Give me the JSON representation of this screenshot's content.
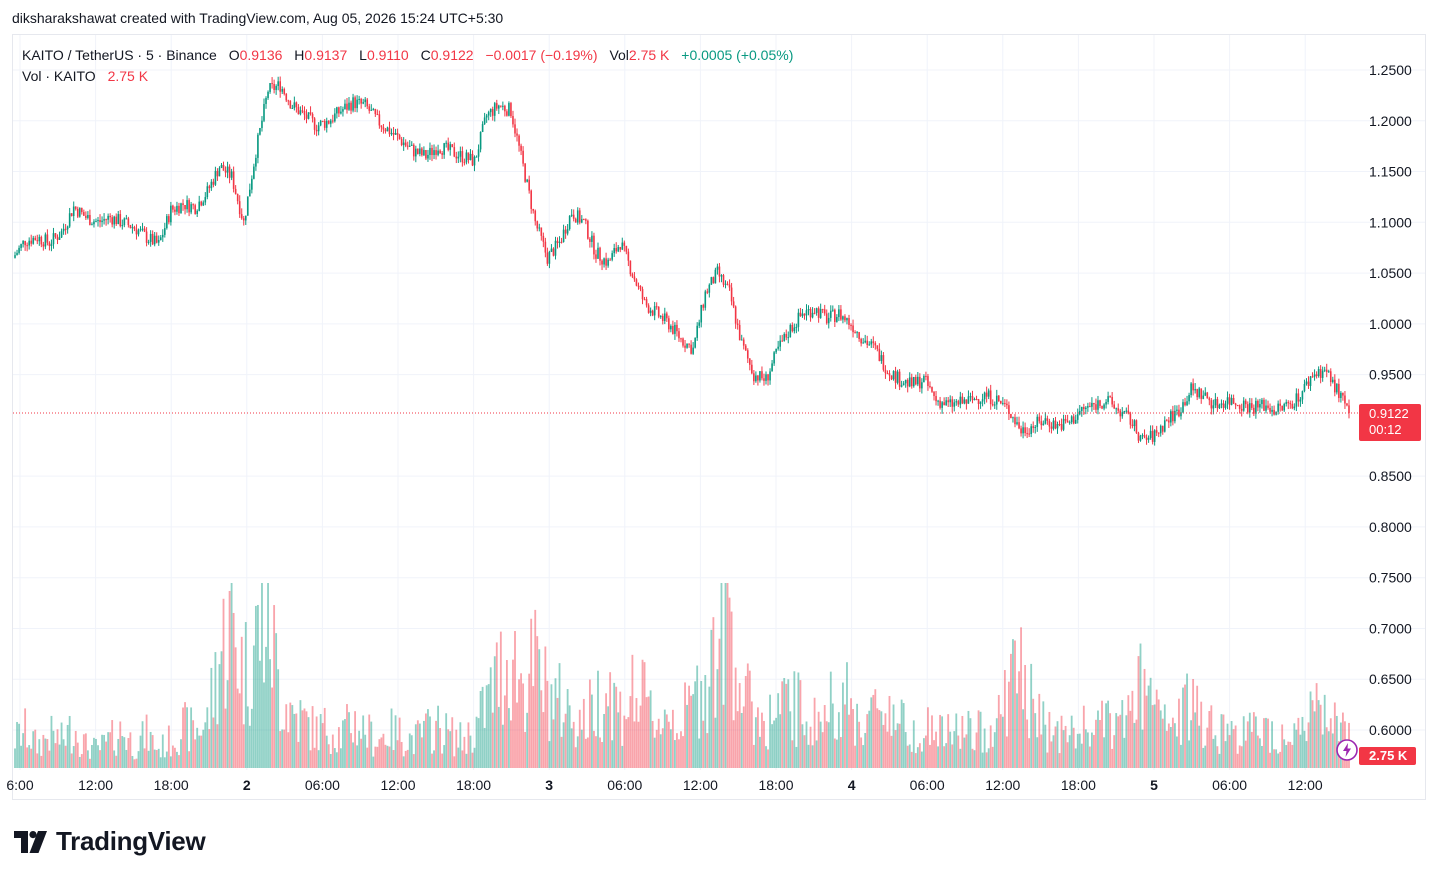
{
  "credit": "diksharakshawat created with TradingView.com, Aug 05, 2026 15:24 UTC+5:30",
  "legend": {
    "symbol": "KAITO / TetherUS · 5 · Binance",
    "open_label": "O",
    "open": "0.9136",
    "high_label": "H",
    "high": "0.9137",
    "low_label": "L",
    "low": "0.9110",
    "close_label": "C",
    "close": "0.9122",
    "change": "−0.0017 (−0.19%)",
    "vol_label": "Vol",
    "vol": "2.75 K",
    "vol_change": "+0.0005 (+0.05%)",
    "vol_row_label": "Vol · KAITO",
    "vol_row_value": "2.75 K"
  },
  "price_tag": {
    "price": "0.9122",
    "countdown": "00:12"
  },
  "volume_tag": "2.75 K",
  "logo_text": "TradingView",
  "colors": {
    "up": "#089981",
    "down": "#f23645",
    "grid": "#f0f3fa",
    "text": "#131722"
  },
  "chart_data": {
    "type": "candlestick",
    "symbol": "KAITO / TetherUS",
    "interval": "5",
    "exchange": "Binance",
    "y_axis": {
      "ticks": [
        "1.2500",
        "1.2000",
        "1.1500",
        "1.1000",
        "1.0500",
        "1.0000",
        "0.9500",
        "0.9122",
        "0.8500",
        "0.8000",
        "0.7500",
        "0.7000",
        "0.6500",
        "0.6000"
      ],
      "range": [
        0.57,
        1.27
      ],
      "position": "right"
    },
    "x_axis": {
      "ticks": [
        "6:00",
        "12:00",
        "18:00",
        "2",
        "06:00",
        "12:00",
        "18:00",
        "3",
        "06:00",
        "12:00",
        "18:00",
        "4",
        "06:00",
        "12:00",
        "18:00",
        "5",
        "06:00",
        "12:00"
      ],
      "bold_ticks": [
        "2",
        "3",
        "4",
        "5"
      ]
    },
    "grid": true,
    "last_price": 0.9122,
    "price_path_hourly": [
      1.065,
      1.082,
      1.085,
      1.08,
      1.09,
      1.115,
      1.105,
      1.1,
      1.105,
      1.1,
      1.095,
      1.085,
      1.078,
      1.112,
      1.118,
      1.115,
      1.13,
      1.155,
      1.145,
      1.1,
      1.17,
      1.23,
      1.235,
      1.215,
      1.205,
      1.195,
      1.2,
      1.21,
      1.218,
      1.215,
      1.2,
      1.19,
      1.18,
      1.17,
      1.165,
      1.175,
      1.17,
      1.165,
      1.16,
      1.205,
      1.215,
      1.21,
      1.155,
      1.1,
      1.065,
      1.08,
      1.11,
      1.1,
      1.07,
      1.06,
      1.08,
      1.05,
      1.02,
      1.01,
      1.0,
      0.985,
      0.975,
      1.03,
      1.05,
      1.03,
      0.98,
      0.95,
      0.945,
      0.975,
      0.995,
      1.01,
      1.015,
      1.005,
      1.01,
      1.0,
      0.985,
      0.975,
      0.955,
      0.945,
      0.94,
      0.945,
      0.925,
      0.92,
      0.922,
      0.925,
      0.93,
      0.925,
      0.915,
      0.895,
      0.9,
      0.905,
      0.9,
      0.903,
      0.915,
      0.92,
      0.925,
      0.915,
      0.905,
      0.885,
      0.89,
      0.905,
      0.915,
      0.935,
      0.93,
      0.92,
      0.925,
      0.922,
      0.918,
      0.92,
      0.915,
      0.92,
      0.93,
      0.95,
      0.955,
      0.935,
      0.9122
    ],
    "volume": {
      "label": "Vol · KAITO",
      "last": "2.75 K",
      "relative_levels_hourly": [
        0.15,
        0.2,
        0.12,
        0.18,
        0.15,
        0.22,
        0.12,
        0.1,
        0.15,
        0.2,
        0.12,
        0.18,
        0.1,
        0.15,
        0.22,
        0.2,
        0.25,
        0.6,
        0.8,
        0.5,
        0.7,
        0.85,
        0.4,
        0.3,
        0.25,
        0.2,
        0.22,
        0.18,
        0.25,
        0.2,
        0.15,
        0.2,
        0.18,
        0.15,
        0.2,
        0.22,
        0.18,
        0.15,
        0.2,
        0.35,
        0.5,
        0.6,
        0.45,
        0.55,
        0.4,
        0.35,
        0.3,
        0.25,
        0.35,
        0.45,
        0.3,
        0.4,
        0.35,
        0.25,
        0.3,
        0.25,
        0.35,
        0.5,
        0.65,
        0.9,
        0.4,
        0.3,
        0.25,
        0.3,
        0.35,
        0.3,
        0.25,
        0.28,
        0.45,
        0.3,
        0.25,
        0.3,
        0.35,
        0.25,
        0.2,
        0.22,
        0.2,
        0.18,
        0.22,
        0.18,
        0.2,
        0.25,
        0.45,
        0.55,
        0.3,
        0.22,
        0.2,
        0.18,
        0.2,
        0.25,
        0.22,
        0.25,
        0.3,
        0.45,
        0.3,
        0.22,
        0.25,
        0.35,
        0.3,
        0.22,
        0.2,
        0.18,
        0.2,
        0.22,
        0.18,
        0.2,
        0.22,
        0.28,
        0.3,
        0.22,
        0.15
      ]
    }
  }
}
